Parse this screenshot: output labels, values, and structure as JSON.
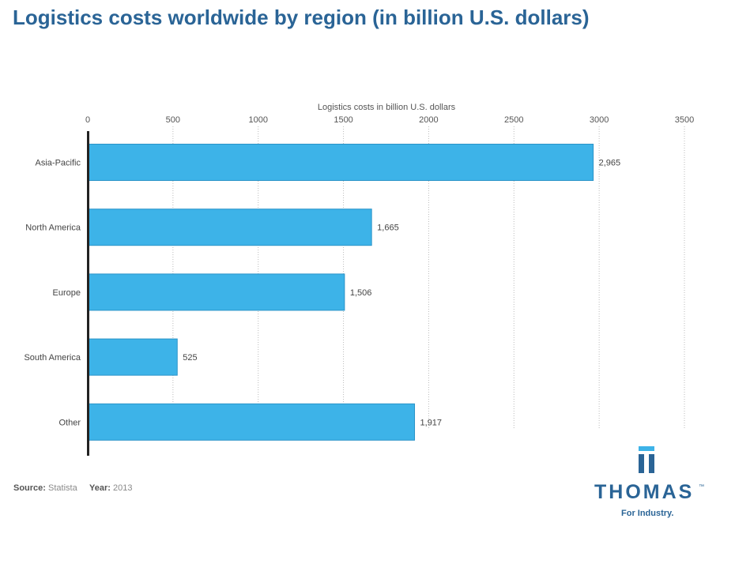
{
  "title": "Logistics costs worldwide by region (in billion U.S. dollars)",
  "source": {
    "source_label": "Source:",
    "source_value": "Statista",
    "year_label": "Year:",
    "year_value": "2013"
  },
  "logo": {
    "wordmark": "THOMAS",
    "trademark": "™",
    "tagline": "For Industry."
  },
  "colors": {
    "bar": "#3db3e8",
    "bar_edge": "#2a93c8",
    "title": "#2a6496",
    "grid": "#bbbbbb"
  },
  "chart_data": {
    "type": "bar",
    "orientation": "horizontal",
    "categories": [
      "Asia-Pacific",
      "North America",
      "Europe",
      "South America",
      "Other"
    ],
    "values": [
      2965,
      1665,
      1506,
      525,
      1917
    ],
    "value_labels": [
      "2,965",
      "1,665",
      "1,506",
      "525",
      "1,917"
    ],
    "xlabel": "Logistics costs in billion U.S. dollars",
    "ylabel": "",
    "xlim": [
      0,
      3500
    ],
    "xticks": [
      0,
      500,
      1000,
      1500,
      2000,
      2500,
      3000,
      3500
    ],
    "grid": true,
    "axis_position": "top"
  }
}
